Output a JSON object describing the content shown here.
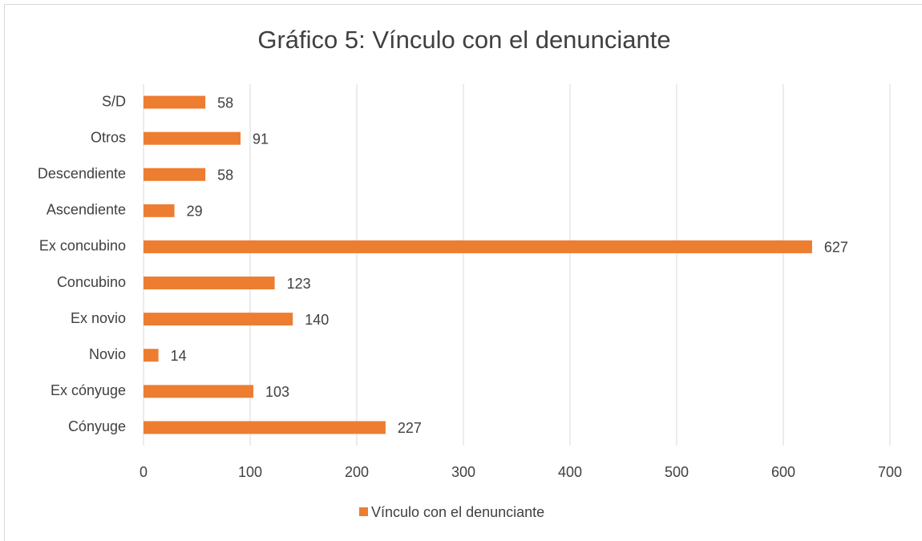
{
  "chart_data": {
    "type": "bar",
    "orientation": "horizontal",
    "title": "Gráfico 5: Vínculo con el denunciante",
    "categories": [
      "Cónyuge",
      "Ex cónyuge",
      "Novio",
      "Ex novio",
      "Concubino",
      "Ex concubino",
      "Ascendiente",
      "Descendiente",
      "Otros",
      "S/D"
    ],
    "series": [
      {
        "name": "Vínculo con el denunciante",
        "color": "#ed7d31",
        "values": [
          227,
          103,
          14,
          140,
          123,
          627,
          29,
          58,
          91,
          58
        ]
      }
    ],
    "xlim": [
      0,
      700
    ],
    "xticks": [
      0,
      100,
      200,
      300,
      400,
      500,
      600,
      700
    ],
    "grid": true,
    "legend": "bottom"
  }
}
